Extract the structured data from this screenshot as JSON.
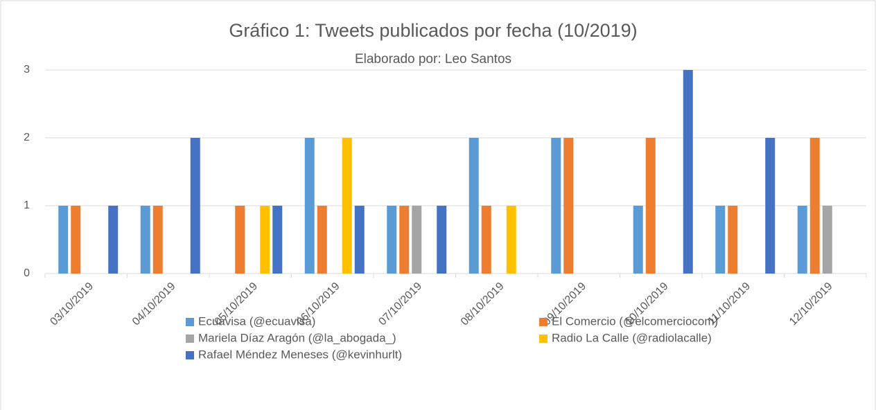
{
  "chart_data": {
    "type": "bar",
    "title": "Gráfico 1: Tweets publicados por fecha (10/2019)",
    "subtitle": "Elaborado por: Leo Santos",
    "categories": [
      "03/10/2019",
      "04/10/2019",
      "05/10/2019",
      "06/10/2019",
      "07/10/2019",
      "08/10/2019",
      "09/10/2019",
      "10/10/2019",
      "11/10/2019",
      "12/10/2019"
    ],
    "series": [
      {
        "name": "Ecuavisa (@ecuavisa)",
        "color": "#5b9bd5",
        "values": [
          1,
          1,
          0,
          2,
          1,
          2,
          2,
          1,
          1,
          1
        ]
      },
      {
        "name": "El Comercio (@elcomerciocom)",
        "color": "#ed7d31",
        "values": [
          1,
          1,
          1,
          1,
          1,
          1,
          2,
          2,
          1,
          2
        ]
      },
      {
        "name": "Mariela Díaz Aragón (@la_abogada_)",
        "color": "#a5a5a5",
        "values": [
          0,
          0,
          0,
          0,
          1,
          0,
          0,
          0,
          0,
          1
        ]
      },
      {
        "name": "Radio La Calle (@radiolacalle)",
        "color": "#ffc000",
        "values": [
          0,
          0,
          1,
          2,
          0,
          1,
          0,
          0,
          0,
          0
        ]
      },
      {
        "name": "Rafael Méndez Meneses (@kevinhurlt)",
        "color": "#4472c4",
        "values": [
          1,
          2,
          1,
          1,
          1,
          0,
          0,
          3,
          2,
          0
        ]
      }
    ],
    "ylim": [
      0,
      3
    ],
    "yticks": [
      0,
      1,
      2,
      3
    ],
    "grid": true,
    "legend": "bottom"
  }
}
